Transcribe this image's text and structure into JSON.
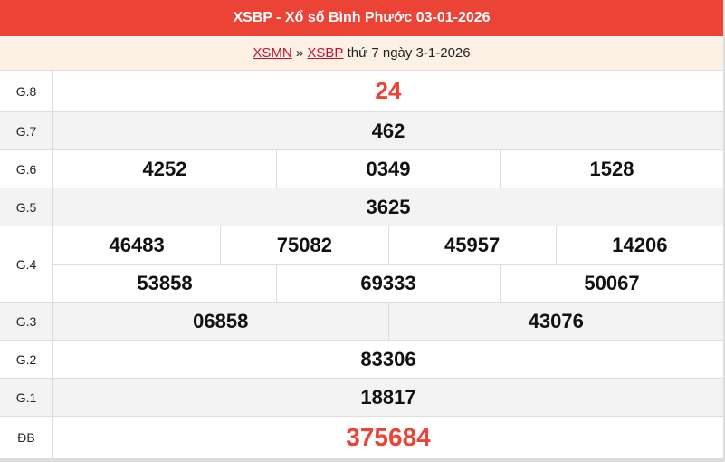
{
  "title": "XSBP - Xổ số Bình Phước 03-01-2026",
  "breadcrumb": {
    "link1": "XSMN",
    "sep": "»",
    "link2": "XSBP",
    "rest": "thứ 7 ngày 3-1-2026"
  },
  "accent": "#ec4337",
  "prizes": [
    {
      "label": "G.8",
      "lines": [
        [
          "24"
        ]
      ]
    },
    {
      "label": "G.7",
      "lines": [
        [
          "462"
        ]
      ]
    },
    {
      "label": "G.6",
      "lines": [
        [
          "4252",
          "0349",
          "1528"
        ]
      ]
    },
    {
      "label": "G.5",
      "lines": [
        [
          "3625"
        ]
      ]
    },
    {
      "label": "G.4",
      "lines": [
        [
          "46483",
          "75082",
          "45957",
          "14206"
        ],
        [
          "53858",
          "69333",
          "50067"
        ]
      ]
    },
    {
      "label": "G.3",
      "lines": [
        [
          "06858",
          "43076"
        ]
      ]
    },
    {
      "label": "G.2",
      "lines": [
        [
          "83306"
        ]
      ]
    },
    {
      "label": "G.1",
      "lines": [
        [
          "18817"
        ]
      ]
    },
    {
      "label": "ĐB",
      "lines": [
        [
          "375684"
        ]
      ]
    }
  ]
}
